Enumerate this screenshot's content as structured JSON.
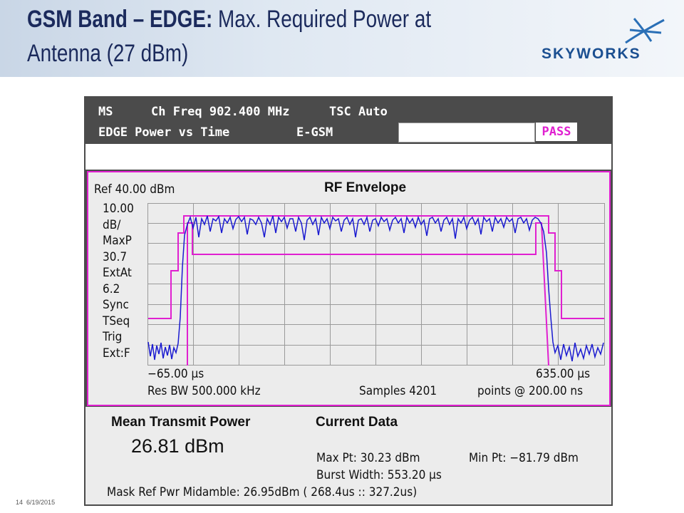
{
  "header": {
    "title_bold": "GSM Band – EDGE:",
    "title_line1": "Max. Required Power at",
    "title_line2": "Antenna (27 dBm)",
    "logo": "SKYWORKS"
  },
  "footer": {
    "page": "14",
    "date": "6/19/2015"
  },
  "instrument": {
    "status": {
      "mode": "MS",
      "frequency": "Ch Freq 902.400 MHz",
      "tsc": "TSC Auto",
      "measurement": "EDGE Power vs Time",
      "band": "E-GSM",
      "result": "PASS"
    },
    "plot": {
      "ref_level": "Ref 40.00 dBm",
      "title": "RF Envelope",
      "side_labels": [
        "10.00",
        "dB/",
        "MaxP",
        "30.7",
        "ExtAt",
        "6.2",
        "Sync",
        "TSeq",
        "Trig",
        "Ext:F"
      ],
      "x_start": "−65.00 µs",
      "x_end": "635.00 µs",
      "res_bw": "Res BW 500.000 kHz",
      "samples": "Samples 4201",
      "points": "points @ 200.00 ns"
    },
    "results": {
      "left_title": "Mean Transmit Power",
      "mean_power": "26.81 dBm",
      "right_title": "Current Data",
      "max_pt": "Max Pt: 30.23 dBm",
      "min_pt": "Min Pt: −81.79 dBm",
      "burst_width": "Burst Width: 553.20 µs",
      "mask_ref": "Mask Ref Pwr Midamble: 26.95dBm ( 268.4us :: 327.2us)"
    }
  }
}
